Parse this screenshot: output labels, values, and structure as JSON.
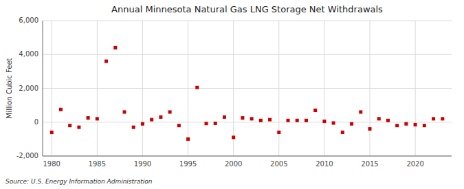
{
  "chart_data": {
    "type": "scatter",
    "title": "Annual Minnesota Natural Gas LNG Storage Net Withdrawals",
    "ylabel": "Million Cubic Feet",
    "annotations": [
      "Source: U.S. Energy Information Administration"
    ],
    "x": [
      1980,
      1981,
      1982,
      1983,
      1984,
      1985,
      1986,
      1987,
      1988,
      1989,
      1990,
      1991,
      1992,
      1993,
      1994,
      1995,
      1996,
      1997,
      1998,
      1999,
      2000,
      2001,
      2002,
      2003,
      2004,
      2005,
      2006,
      2007,
      2008,
      2009,
      2010,
      2011,
      2012,
      2013,
      2014,
      2015,
      2016,
      2017,
      2018,
      2019,
      2020,
      2021,
      2022,
      2023
    ],
    "values": [
      -600,
      750,
      -200,
      -300,
      250,
      200,
      3600,
      4400,
      600,
      -300,
      -100,
      150,
      300,
      600,
      -200,
      -1000,
      2050,
      -80,
      -70,
      300,
      -900,
      250,
      200,
      100,
      150,
      -600,
      100,
      100,
      100,
      700,
      50,
      -50,
      -600,
      -100,
      600,
      -400,
      200,
      100,
      -200,
      -100,
      -150,
      -200,
      200,
      200
    ],
    "color": "#cc0000",
    "marker": "square",
    "xlim": [
      1979,
      2024
    ],
    "xticks": [
      1980,
      1985,
      1990,
      1995,
      2000,
      2005,
      2010,
      2015,
      2020
    ],
    "ylim": [
      -2000,
      6000
    ],
    "yticks": [
      {
        "value": -2000,
        "label": "-2,000"
      },
      0,
      {
        "value": 2000,
        "label": "2,000"
      },
      {
        "value": 4000,
        "label": "4,000"
      },
      {
        "value": 6000,
        "label": "6,000"
      }
    ],
    "grid": true
  }
}
